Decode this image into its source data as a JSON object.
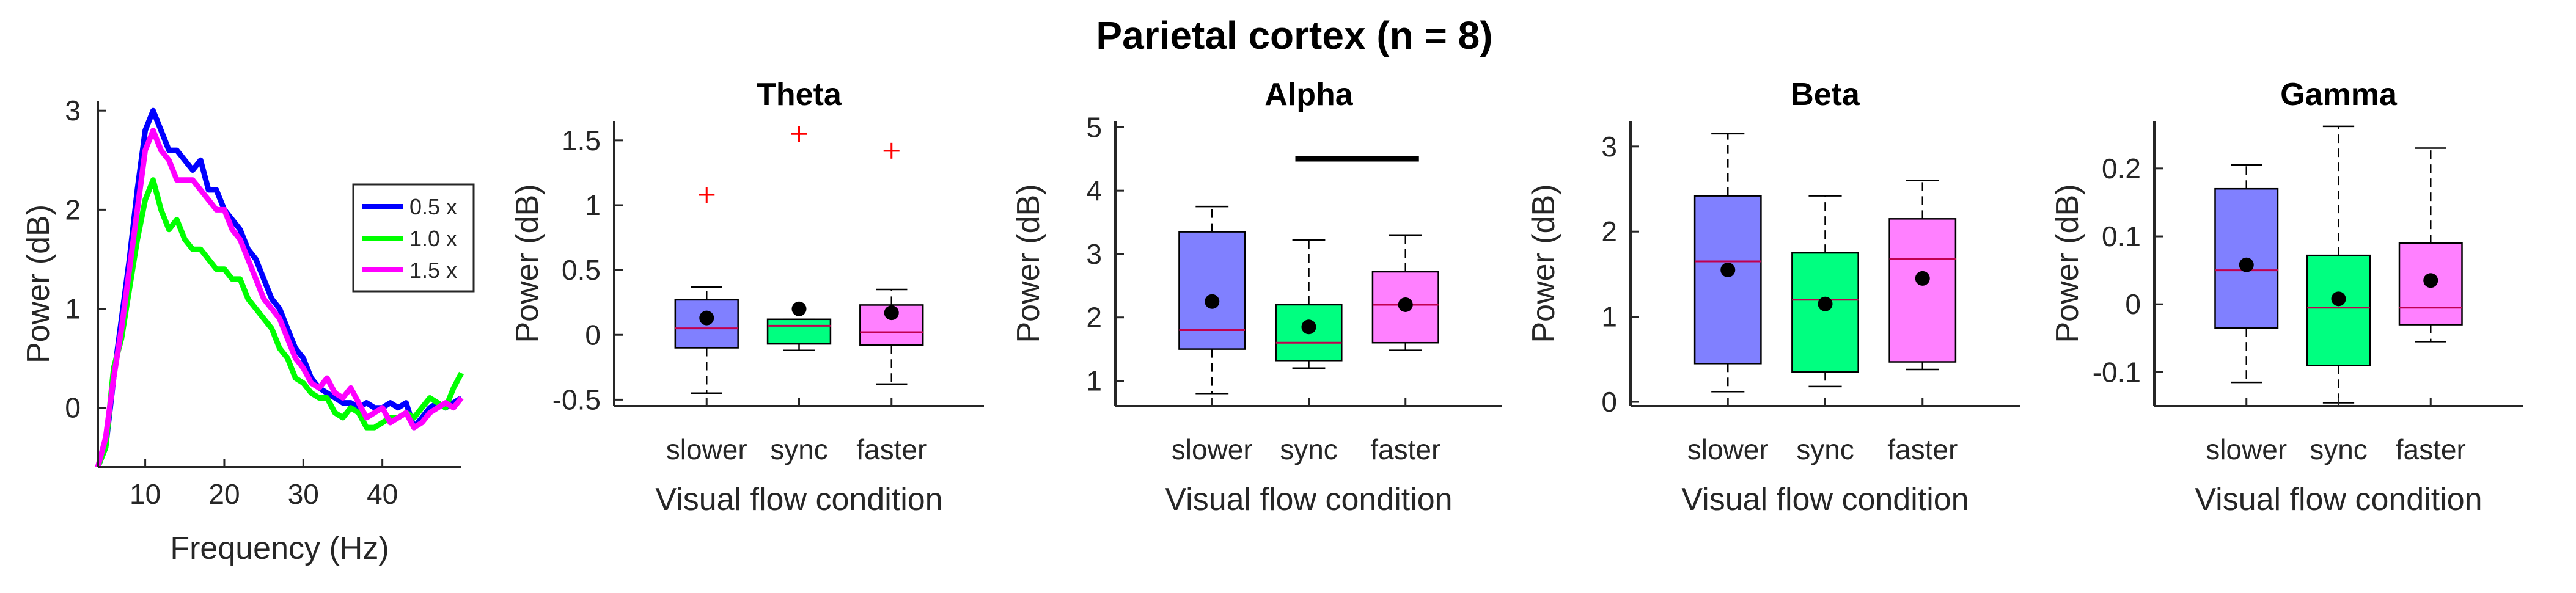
{
  "title": "Parietal cortex (n = 8)",
  "colors": {
    "blue": "#0000ff",
    "green": "#00ff00",
    "magenta": "#ff00ff",
    "box_blue": "#8080ff",
    "box_green": "#00ff80",
    "box_magenta": "#ff80ff",
    "median": "#c0004f",
    "outlier": "#ff0000",
    "mean": "#000000"
  },
  "chart_data": [
    {
      "type": "line",
      "xlabel": "Frequency (Hz)",
      "ylabel": "Power (dB)",
      "xlim": [
        4,
        50
      ],
      "ylim": [
        -0.6,
        3.1
      ],
      "xticks": [
        "10",
        "20",
        "30",
        "40"
      ],
      "yticks": [
        "0",
        "1",
        "2",
        "3"
      ],
      "legend_position": "right",
      "series": [
        {
          "name": "0.5 x",
          "color": "#0000ff",
          "x": [
            4,
            5,
            6,
            7,
            8,
            9,
            10,
            11,
            12,
            13,
            14,
            15,
            16,
            17,
            18,
            19,
            20,
            21,
            22,
            23,
            24,
            25,
            26,
            27,
            28,
            29,
            30,
            31,
            32,
            33,
            34,
            35,
            36,
            37,
            38,
            39,
            40,
            41,
            42,
            43,
            44,
            45,
            46,
            47,
            48,
            49,
            50
          ],
          "y": [
            -0.6,
            -0.4,
            0.3,
            0.9,
            1.5,
            2.2,
            2.8,
            3.0,
            2.8,
            2.6,
            2.6,
            2.5,
            2.4,
            2.5,
            2.2,
            2.2,
            2.0,
            1.9,
            1.8,
            1.6,
            1.5,
            1.3,
            1.1,
            1.0,
            0.8,
            0.6,
            0.5,
            0.3,
            0.2,
            0.15,
            0.1,
            0.05,
            0.05,
            0.0,
            0.05,
            0.0,
            0.0,
            0.05,
            0.0,
            0.05,
            -0.2,
            -0.1,
            0.0,
            0.05,
            0.0,
            0.05,
            0.1
          ]
        },
        {
          "name": "1.0 x",
          "color": "#00ff00",
          "x": [
            4,
            5,
            6,
            7,
            8,
            9,
            10,
            11,
            12,
            13,
            14,
            15,
            16,
            17,
            18,
            19,
            20,
            21,
            22,
            23,
            24,
            25,
            26,
            27,
            28,
            29,
            30,
            31,
            32,
            33,
            34,
            35,
            36,
            37,
            38,
            39,
            40,
            41,
            42,
            43,
            44,
            45,
            46,
            47,
            48,
            49,
            50
          ],
          "y": [
            -0.6,
            -0.4,
            0.4,
            0.7,
            1.2,
            1.7,
            2.1,
            2.3,
            2.0,
            1.8,
            1.9,
            1.7,
            1.6,
            1.6,
            1.5,
            1.4,
            1.4,
            1.3,
            1.3,
            1.1,
            1.0,
            0.9,
            0.8,
            0.6,
            0.5,
            0.3,
            0.25,
            0.15,
            0.1,
            0.1,
            -0.05,
            -0.1,
            0.0,
            -0.05,
            -0.2,
            -0.2,
            -0.15,
            -0.1,
            -0.1,
            -0.05,
            -0.1,
            0.0,
            0.1,
            0.05,
            0.0,
            0.2,
            0.35
          ]
        },
        {
          "name": "1.5 x",
          "color": "#ff00ff",
          "x": [
            4,
            5,
            6,
            7,
            8,
            9,
            10,
            11,
            12,
            13,
            14,
            15,
            16,
            17,
            18,
            19,
            20,
            21,
            22,
            23,
            24,
            25,
            26,
            27,
            28,
            29,
            30,
            31,
            32,
            33,
            34,
            35,
            36,
            37,
            38,
            39,
            40,
            41,
            42,
            43,
            44,
            45,
            46,
            47,
            48,
            49,
            50
          ],
          "y": [
            -0.6,
            -0.3,
            0.3,
            0.8,
            1.4,
            2.0,
            2.6,
            2.8,
            2.6,
            2.5,
            2.3,
            2.3,
            2.3,
            2.2,
            2.1,
            2.0,
            2.0,
            1.8,
            1.7,
            1.5,
            1.3,
            1.1,
            1.0,
            0.9,
            0.7,
            0.5,
            0.4,
            0.25,
            0.2,
            0.3,
            0.15,
            0.1,
            0.2,
            0.05,
            -0.1,
            -0.05,
            0.0,
            -0.15,
            -0.1,
            -0.05,
            -0.2,
            -0.15,
            -0.05,
            0.0,
            0.05,
            0.0,
            0.1
          ]
        }
      ]
    },
    {
      "type": "box",
      "title": "Theta",
      "xlabel": "Visual flow condition",
      "ylabel": "Power (dB)",
      "ylim": [
        -0.55,
        1.65
      ],
      "yticks": [
        "-0.5",
        "0",
        "0.5",
        "1",
        "1.5"
      ],
      "categories": [
        "slower",
        "sync",
        "faster"
      ],
      "boxes": [
        {
          "q1": -0.1,
          "median": 0.05,
          "q3": 0.27,
          "whisker_low": -0.45,
          "whisker_high": 0.37,
          "mean": 0.13,
          "outliers": [
            1.08
          ]
        },
        {
          "q1": -0.07,
          "median": 0.07,
          "q3": 0.12,
          "whisker_low": -0.12,
          "whisker_high": 0.12,
          "mean": 0.2,
          "outliers": [
            1.55
          ]
        },
        {
          "q1": -0.08,
          "median": 0.02,
          "q3": 0.23,
          "whisker_low": -0.38,
          "whisker_high": 0.35,
          "mean": 0.17,
          "outliers": [
            1.42
          ]
        }
      ]
    },
    {
      "type": "box",
      "title": "Alpha",
      "xlabel": "Visual flow condition",
      "ylabel": "Power (dB)",
      "ylim": [
        0.6,
        5.1
      ],
      "yticks": [
        "1",
        "2",
        "3",
        "4",
        "5"
      ],
      "categories": [
        "slower",
        "sync",
        "faster"
      ],
      "significance_bar": [
        "sync",
        "faster"
      ],
      "boxes": [
        {
          "q1": 1.5,
          "median": 1.8,
          "q3": 3.35,
          "whisker_low": 0.8,
          "whisker_high": 3.75,
          "mean": 2.25,
          "outliers": []
        },
        {
          "q1": 1.32,
          "median": 1.6,
          "q3": 2.2,
          "whisker_low": 1.2,
          "whisker_high": 3.22,
          "mean": 1.85,
          "outliers": []
        },
        {
          "q1": 1.6,
          "median": 2.2,
          "q3": 2.72,
          "whisker_low": 1.48,
          "whisker_high": 3.3,
          "mean": 2.2,
          "outliers": []
        }
      ]
    },
    {
      "type": "box",
      "title": "Beta",
      "xlabel": "Visual flow condition",
      "ylabel": "Power (dB)",
      "ylim": [
        -0.05,
        3.3
      ],
      "yticks": [
        "0",
        "1",
        "2",
        "3"
      ],
      "categories": [
        "slower",
        "sync",
        "faster"
      ],
      "boxes": [
        {
          "q1": 0.45,
          "median": 1.65,
          "q3": 2.42,
          "whisker_low": 0.12,
          "whisker_high": 3.15,
          "mean": 1.55,
          "outliers": []
        },
        {
          "q1": 0.35,
          "median": 1.2,
          "q3": 1.75,
          "whisker_low": 0.18,
          "whisker_high": 2.42,
          "mean": 1.15,
          "outliers": []
        },
        {
          "q1": 0.47,
          "median": 1.68,
          "q3": 2.15,
          "whisker_low": 0.38,
          "whisker_high": 2.6,
          "mean": 1.45,
          "outliers": []
        }
      ]
    },
    {
      "type": "box",
      "title": "Gamma",
      "xlabel": "Visual flow condition",
      "ylabel": "Power (dB)",
      "ylim": [
        -0.15,
        0.27
      ],
      "yticks": [
        "-0.1",
        "0",
        "0.1",
        "0.2"
      ],
      "categories": [
        "slower",
        "sync",
        "faster"
      ],
      "boxes": [
        {
          "q1": -0.035,
          "median": 0.05,
          "q3": 0.17,
          "whisker_low": -0.115,
          "whisker_high": 0.205,
          "mean": 0.058,
          "outliers": []
        },
        {
          "q1": -0.09,
          "median": -0.005,
          "q3": 0.072,
          "whisker_low": -0.145,
          "whisker_high": 0.262,
          "mean": 0.008,
          "outliers": []
        },
        {
          "q1": -0.03,
          "median": -0.005,
          "q3": 0.09,
          "whisker_low": -0.055,
          "whisker_high": 0.23,
          "mean": 0.035,
          "outliers": []
        }
      ]
    }
  ]
}
